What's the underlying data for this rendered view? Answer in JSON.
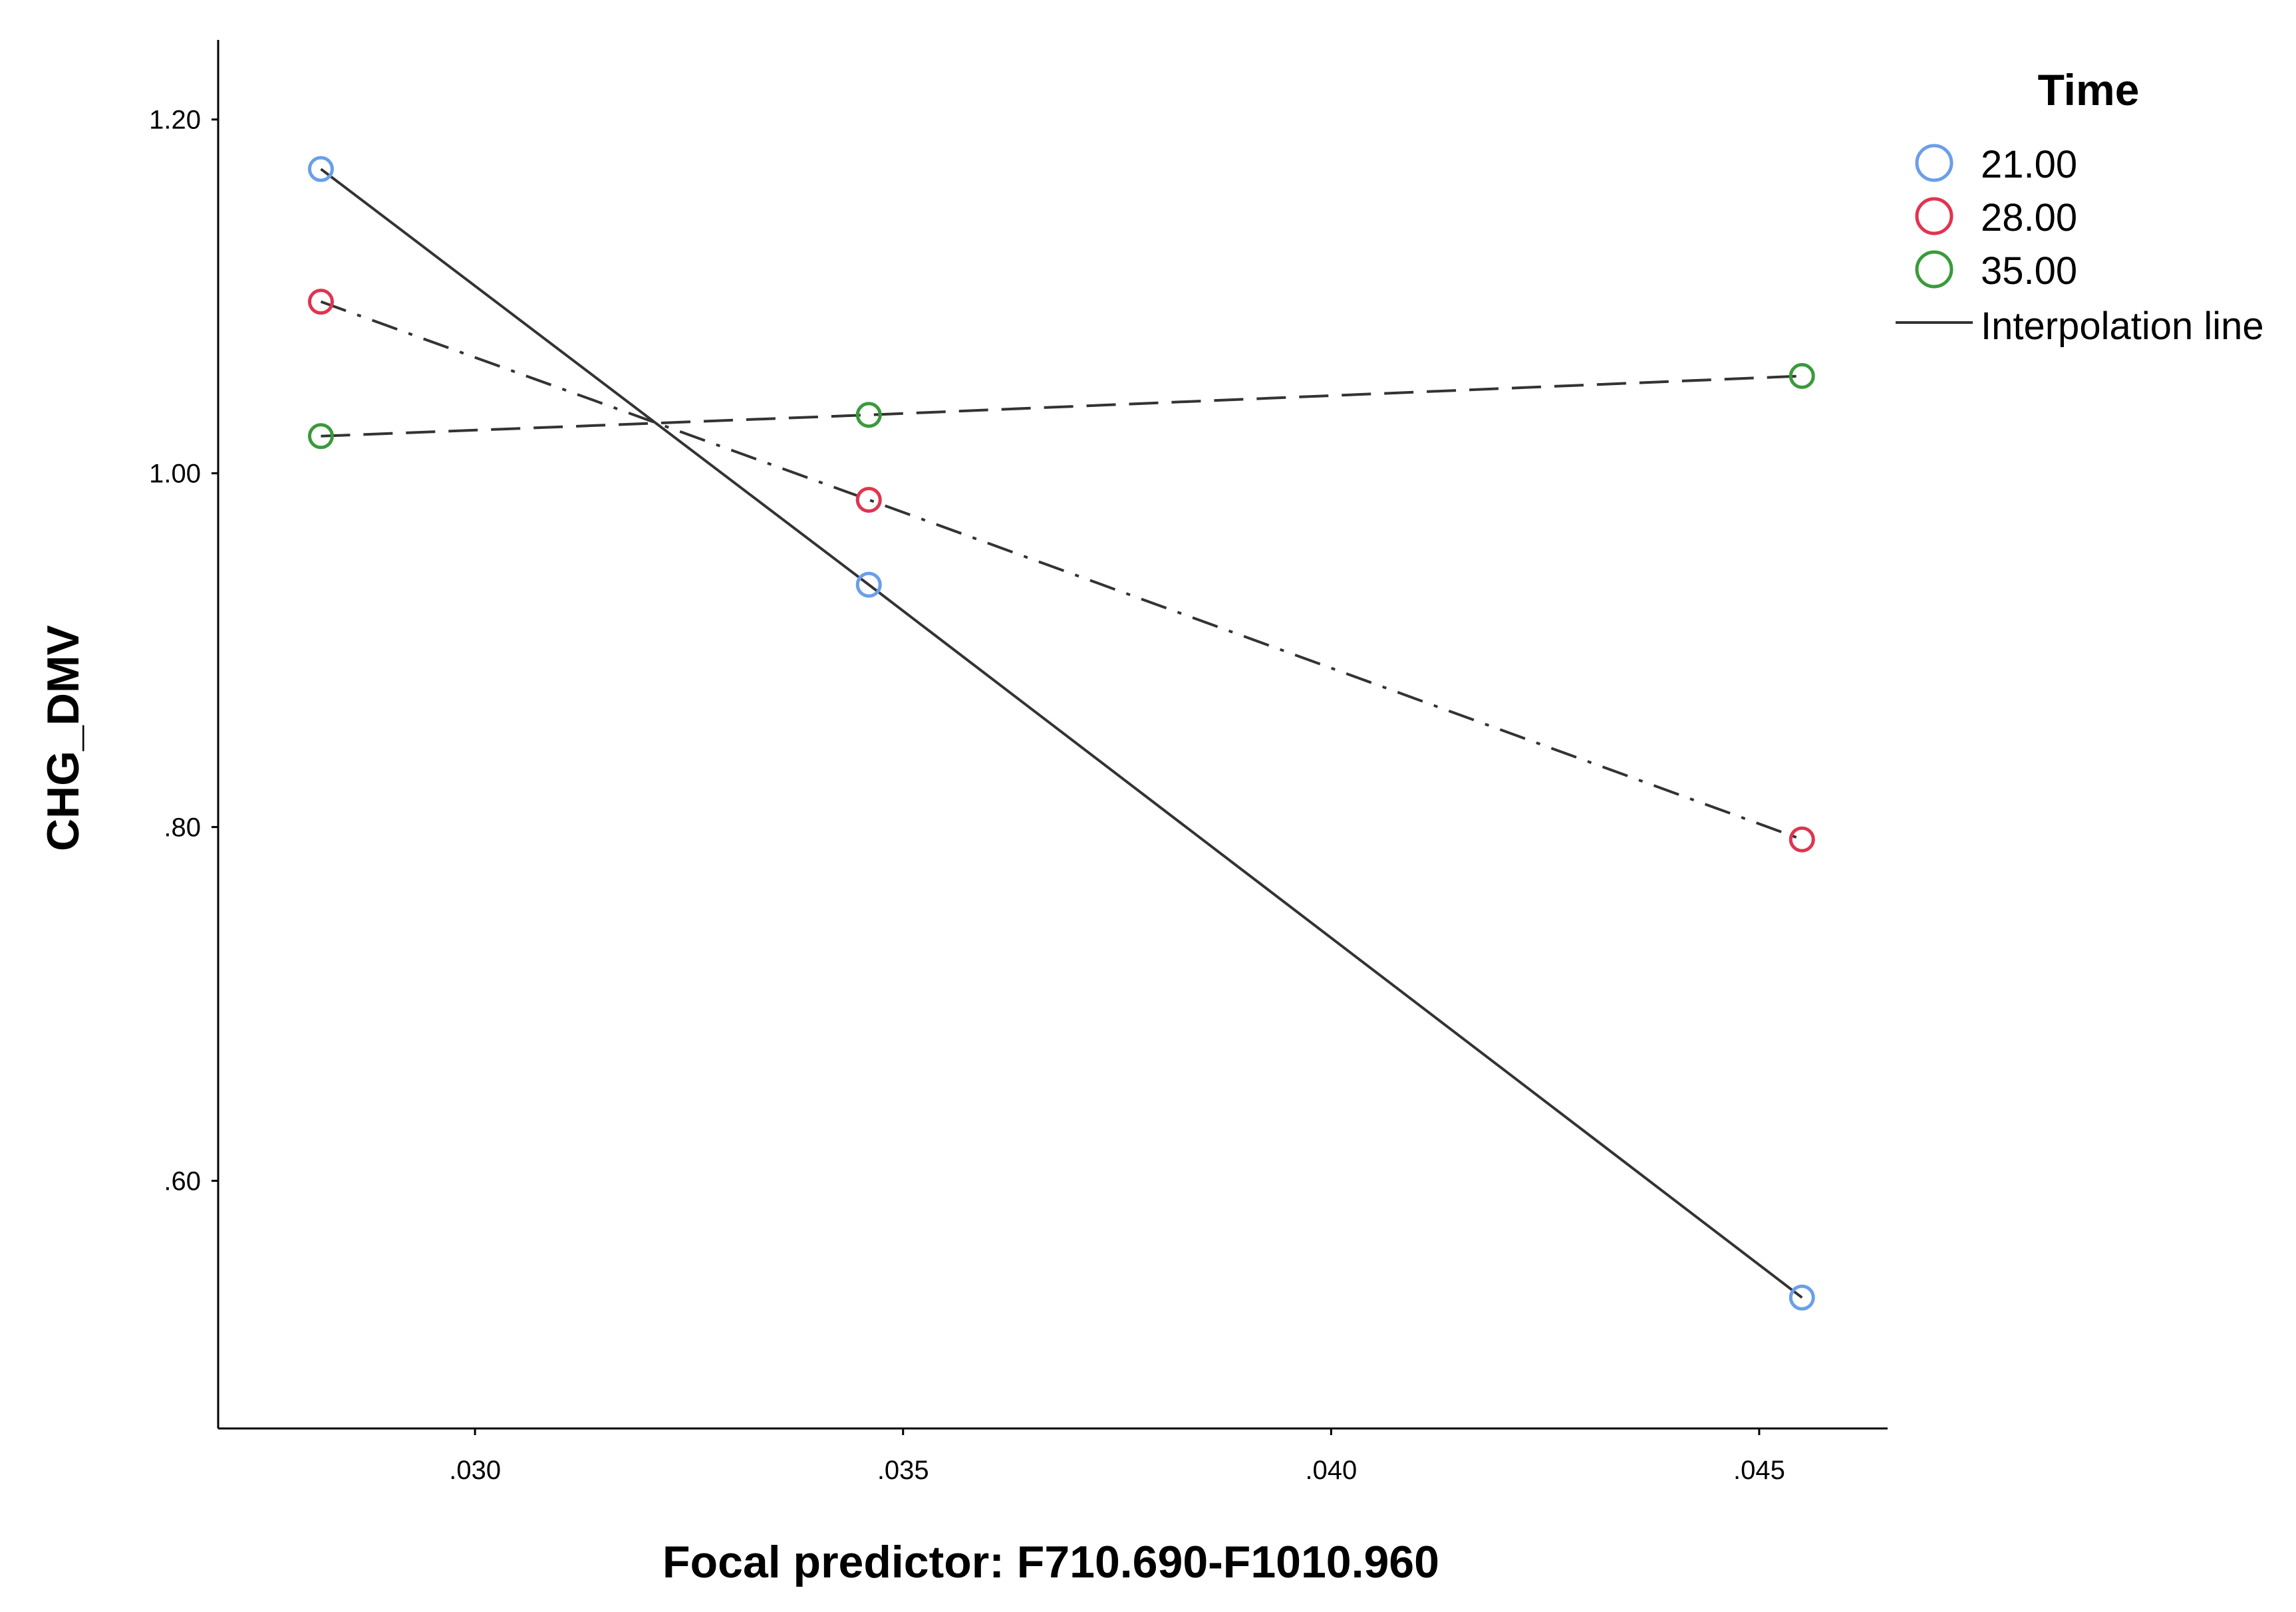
{
  "chart_data": {
    "type": "line",
    "xlabel": "Focal predictor: F710.690-F1010.960",
    "ylabel": "CHG_DMV",
    "xlim": [
      0.027,
      0.0465
    ],
    "ylim": [
      0.46,
      1.245
    ],
    "x_ticks": [
      {
        "value": 0.03,
        "label": ".030"
      },
      {
        "value": 0.035,
        "label": ".035"
      },
      {
        "value": 0.04,
        "label": ".040"
      },
      {
        "value": 0.045,
        "label": ".045"
      }
    ],
    "y_ticks": [
      {
        "value": 0.6,
        "label": ".60"
      },
      {
        "value": 0.8,
        "label": ".80"
      },
      {
        "value": 1.0,
        "label": "1.00"
      },
      {
        "value": 1.2,
        "label": "1.20"
      }
    ],
    "grid": false,
    "legend": {
      "title": "Time",
      "placement": "top-right",
      "line_entry": "Interpolation line"
    },
    "series": [
      {
        "name": "21.00",
        "color": "#6a9fe8",
        "dash": "solid",
        "x": [
          0.0282,
          0.0346,
          0.0455
        ],
        "y": [
          1.172,
          0.937,
          0.534
        ]
      },
      {
        "name": "28.00",
        "color": "#e0344f",
        "dash": "dashdot",
        "x": [
          0.0282,
          0.0346,
          0.0455
        ],
        "y": [
          1.097,
          0.985,
          0.793
        ]
      },
      {
        "name": "35.00",
        "color": "#3a9a3a",
        "dash": "dashed",
        "x": [
          0.0282,
          0.0346,
          0.0455
        ],
        "y": [
          1.021,
          1.033,
          1.055
        ]
      }
    ]
  }
}
